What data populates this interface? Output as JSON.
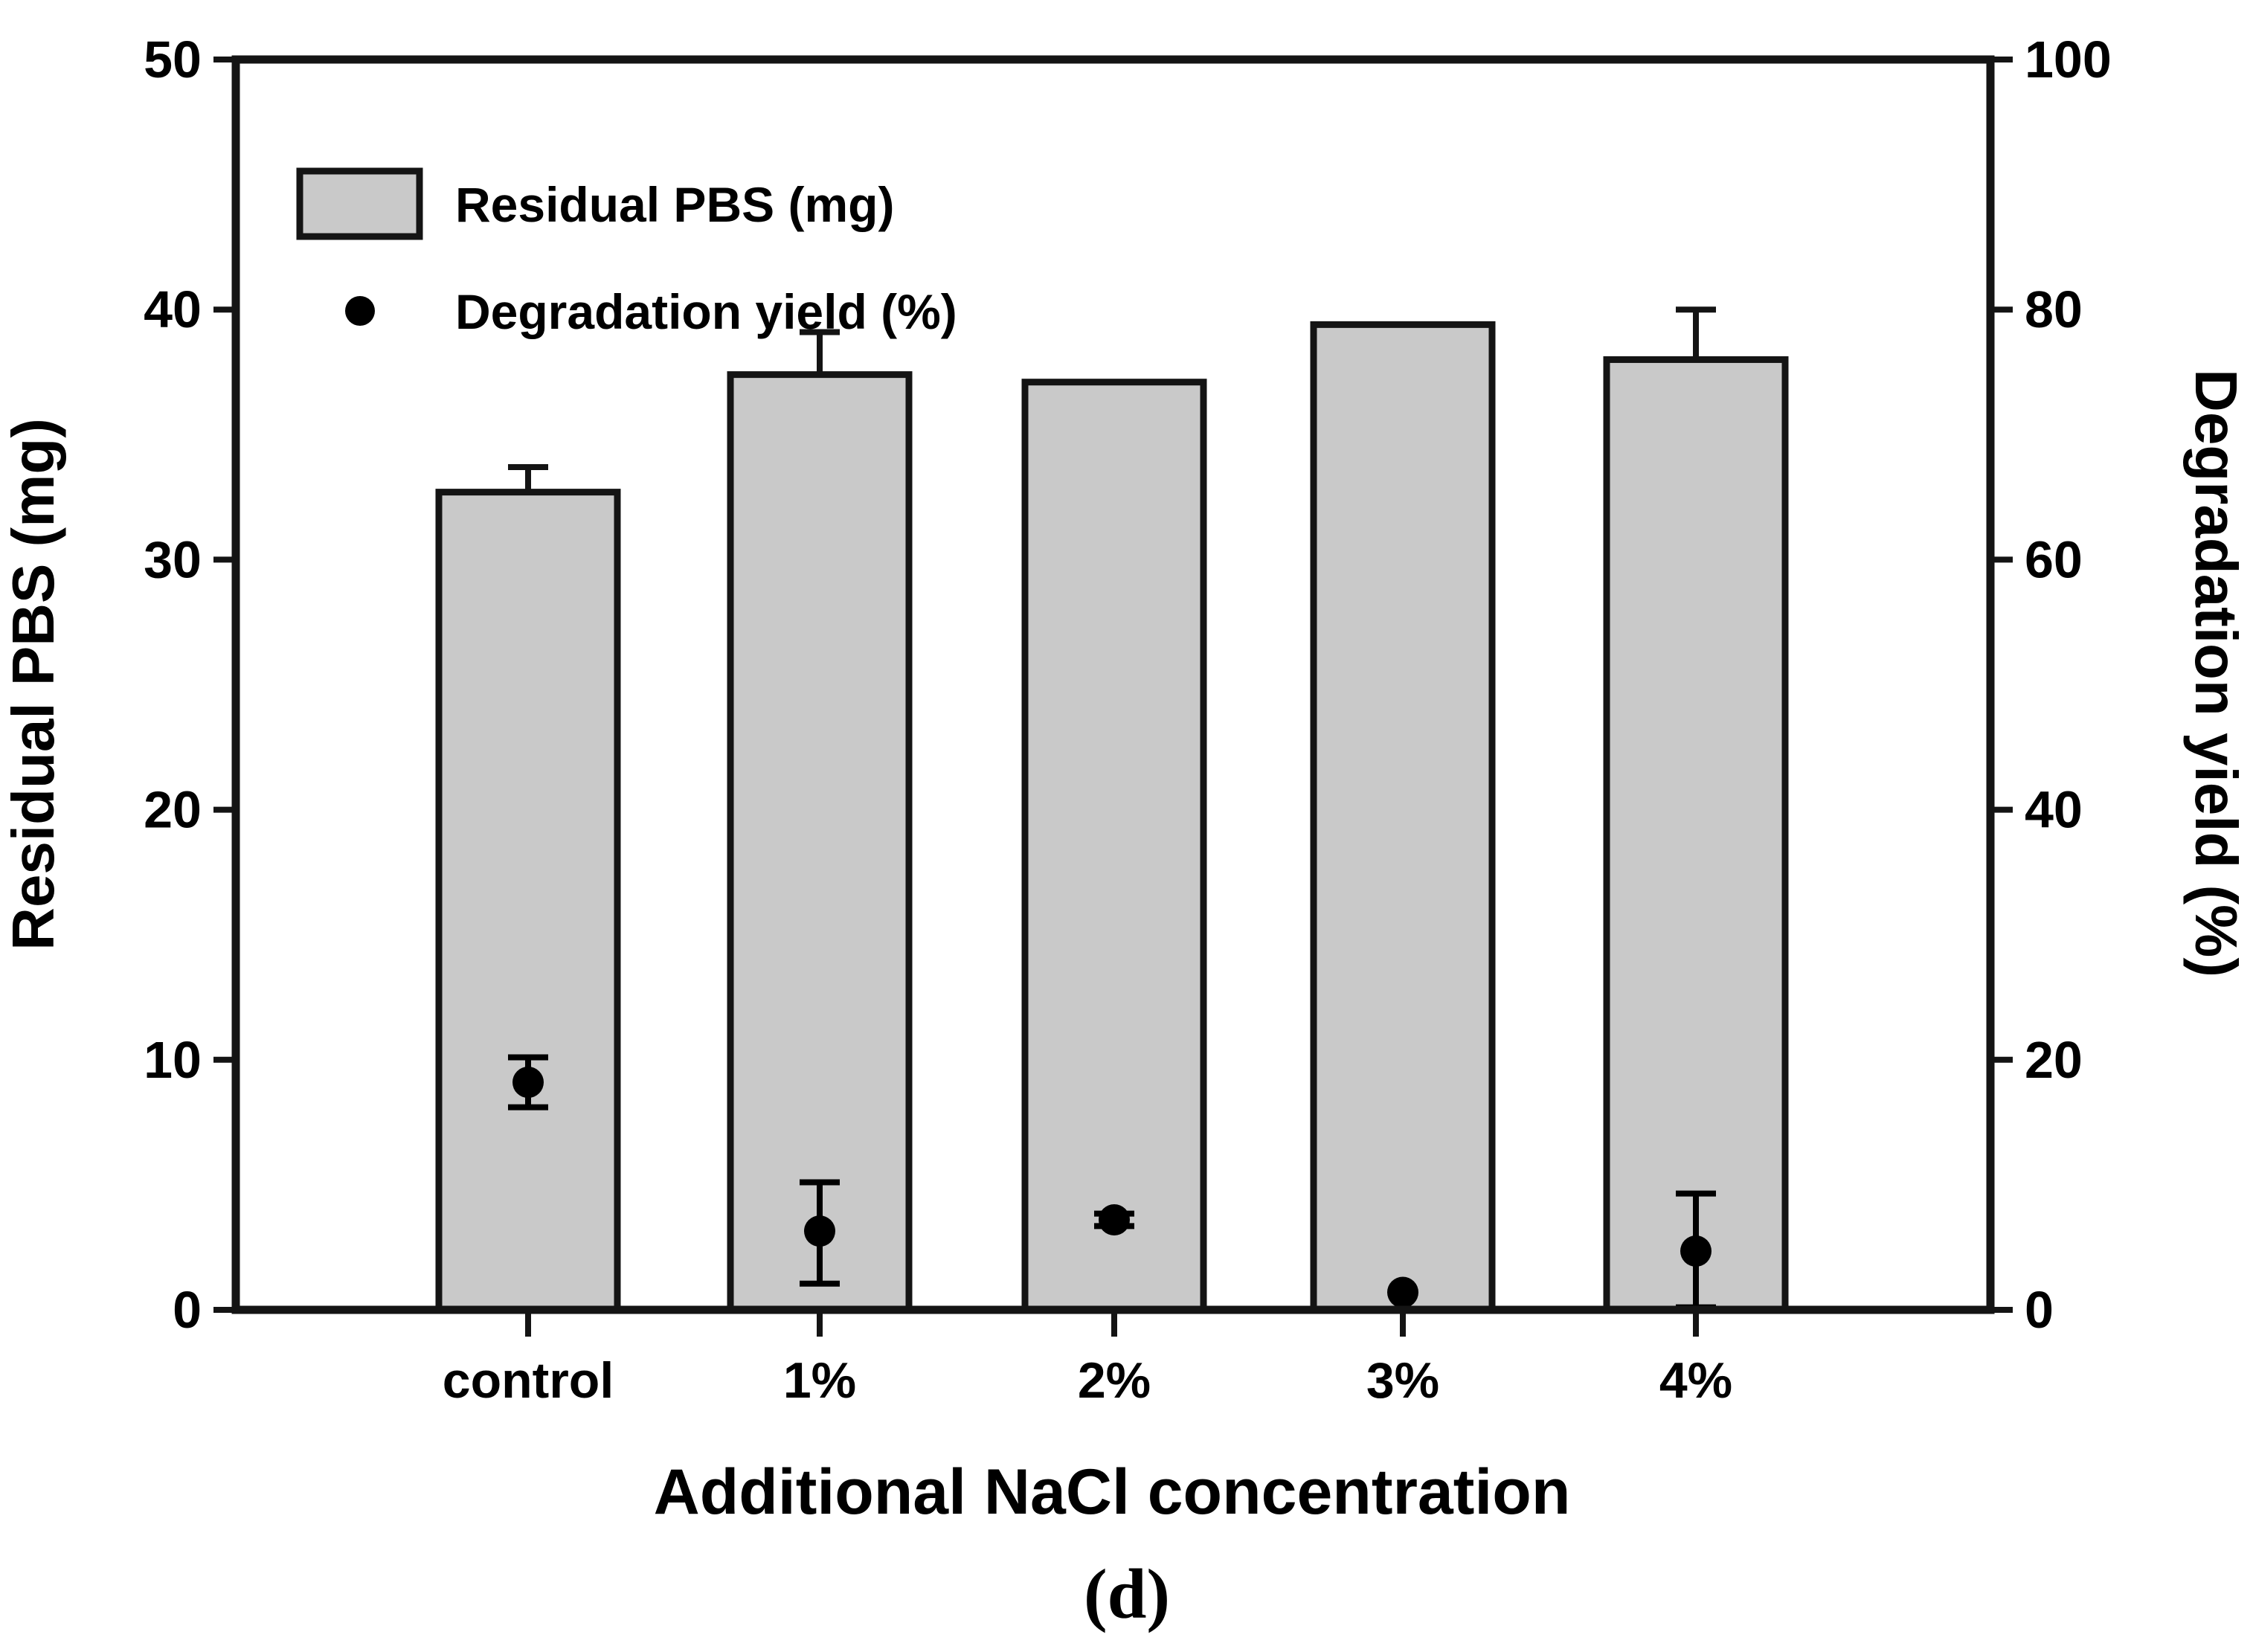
{
  "figure": {
    "caption": "(d)",
    "background": "#ffffff"
  },
  "colors": {
    "bar_fill": "#c9c9c9",
    "bar_stroke": "#141414",
    "axis": "#141414",
    "marker": "#000000",
    "text": "#000000"
  },
  "chart_data": {
    "type": "bar",
    "title": "",
    "categories": [
      "control",
      "1%",
      "2%",
      "3%",
      "4%"
    ],
    "xlabel": "Additional NaCl concentration",
    "left_axis": {
      "label": "Residual PBS (mg)",
      "min": 0,
      "max": 50,
      "ticks": [
        0,
        10,
        20,
        30,
        40,
        50
      ]
    },
    "right_axis": {
      "label": "Degradation yield (%)",
      "min": 0,
      "max": 100,
      "ticks": [
        0,
        20,
        40,
        60,
        80,
        100
      ]
    },
    "grid": false,
    "legend": {
      "position": "top-left",
      "entries": [
        "Residual PBS (mg)",
        "Degradation yield (%)"
      ]
    },
    "series": [
      {
        "name": "Residual PBS (mg)",
        "type": "bar",
        "axis": "left",
        "values": [
          32.7,
          37.4,
          37.1,
          39.4,
          38.0
        ],
        "errors_plus": [
          1.0,
          1.7,
          0,
          0,
          2.0
        ],
        "errors_minus": [
          0,
          0,
          0,
          0,
          0
        ]
      },
      {
        "name": "Degradation yield (%)",
        "type": "scatter",
        "axis": "right",
        "values": [
          18.2,
          6.3,
          7.2,
          1.4,
          4.7
        ],
        "errors_plus": [
          2.0,
          3.9,
          0.5,
          0,
          4.6
        ],
        "errors_minus": [
          2.0,
          4.2,
          0.5,
          0,
          4.5
        ]
      }
    ]
  }
}
